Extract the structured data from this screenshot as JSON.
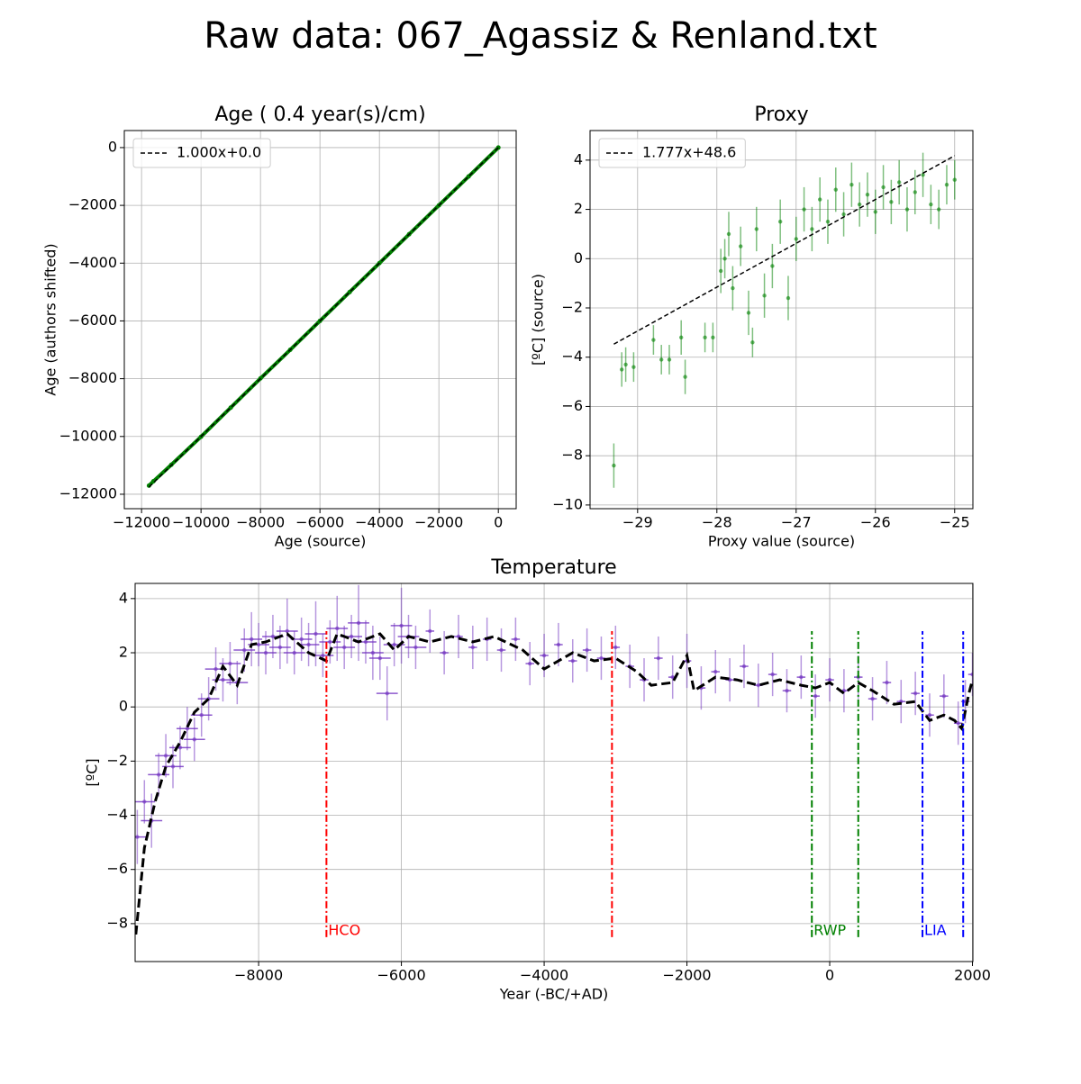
{
  "suptitle": "Raw data: 067_Agassiz & Renland.txt",
  "chart_data": [
    {
      "type": "line",
      "title": "Age ( 0.4 year(s)/cm)",
      "x_label": "Age (source)",
      "y_label": "Age (authors shifted)",
      "xlim": [
        -12580,
        600
      ],
      "ylim": [
        -12500,
        590
      ],
      "xticks": [
        {
          "value": -12000,
          "label": "−12000"
        },
        {
          "value": -10000,
          "label": "−10000"
        },
        {
          "value": -8000,
          "label": "−8000"
        },
        {
          "value": -6000,
          "label": "−6000"
        },
        {
          "value": -4000,
          "label": "−4000"
        },
        {
          "value": -2000,
          "label": "−2000"
        },
        0
      ],
      "yticks": [
        {
          "value": -12000,
          "label": "−12000"
        },
        {
          "value": -10000,
          "label": "−10000"
        },
        {
          "value": -8000,
          "label": "−8000"
        },
        {
          "value": -6000,
          "label": "−6000"
        },
        {
          "value": -4000,
          "label": "−4000"
        },
        {
          "value": -2000,
          "label": "−2000"
        },
        0
      ],
      "grid": true,
      "legend": "upper left",
      "series": [
        {
          "color": "green",
          "marker": true,
          "linewidth": 4,
          "x": [
            -11750,
            -11600,
            -11000,
            -10000,
            -9000,
            -8000,
            -7000,
            -6000,
            -5000,
            -4000,
            -3000,
            -2000,
            -1000,
            0
          ],
          "values": [
            -11700,
            -11550,
            -10980,
            -10010,
            -9000,
            -7990,
            -7000,
            -6000,
            -5000,
            -4000,
            -3000,
            -2000,
            -1000,
            0
          ]
        },
        {
          "name": "1.000x+0.0",
          "color": "black",
          "linestyle": "dashed",
          "linewidth": 1.5,
          "x": [
            -11750,
            0
          ],
          "values": [
            -11750,
            0
          ]
        }
      ]
    },
    {
      "type": "scatter",
      "title": "Proxy",
      "x_label": "Proxy value (source)",
      "y_label": "[ºC] (source)",
      "xlim": [
        -29.6,
        -24.77
      ],
      "ylim": [
        -10.15,
        5.2
      ],
      "xticks": [
        {
          "value": -29,
          "label": "−29"
        },
        {
          "value": -28,
          "label": "−28"
        },
        {
          "value": -27,
          "label": "−27"
        },
        {
          "value": -26,
          "label": "−26"
        },
        {
          "value": -25,
          "label": "−25"
        }
      ],
      "yticks": [
        {
          "value": -10,
          "label": "−10"
        },
        {
          "value": -8,
          "label": "−8"
        },
        {
          "value": -6,
          "label": "−6"
        },
        {
          "value": -4,
          "label": "−4"
        },
        {
          "value": -2,
          "label": "−2"
        },
        0,
        2,
        4
      ],
      "grid": true,
      "legend": "upper left",
      "series": [
        {
          "color": "green",
          "x": [
            -29.3,
            -29.2,
            -29.15,
            -29.05,
            -28.8,
            -28.7,
            -28.6,
            -28.45,
            -28.4,
            -28.15,
            -28.05,
            -27.95,
            -27.9,
            -27.85,
            -27.8,
            -27.7,
            -27.6,
            -27.55,
            -27.5,
            -27.4,
            -27.3,
            -27.2,
            -27.1,
            -27.0,
            -26.9,
            -26.8,
            -26.7,
            -26.6,
            -26.5,
            -26.4,
            -26.3,
            -26.2,
            -26.1,
            -26.0,
            -25.9,
            -25.8,
            -25.7,
            -25.6,
            -25.5,
            -25.4,
            -25.3,
            -25.2,
            -25.1,
            -25.0
          ],
          "values": [
            -8.4,
            -4.5,
            -4.3,
            -4.4,
            -3.3,
            -4.1,
            -4.1,
            -3.2,
            -4.8,
            -3.2,
            -3.2,
            -0.5,
            0.0,
            1.0,
            -1.2,
            0.5,
            -2.2,
            -3.4,
            1.2,
            -1.5,
            -0.3,
            1.5,
            -1.6,
            0.8,
            2.0,
            1.2,
            2.4,
            1.5,
            2.8,
            1.8,
            3.0,
            2.2,
            2.6,
            1.9,
            2.9,
            2.3,
            3.1,
            2.0,
            2.7,
            3.4,
            2.2,
            2.0,
            3.0,
            3.2
          ],
          "yerr": [
            0.9,
            0.7,
            0.7,
            0.6,
            0.6,
            0.6,
            0.6,
            0.7,
            0.7,
            0.6,
            0.6,
            0.9,
            0.8,
            0.9,
            0.9,
            0.8,
            0.9,
            0.6,
            0.9,
            0.9,
            0.9,
            0.9,
            0.9,
            0.9,
            0.9,
            0.9,
            0.9,
            0.9,
            0.9,
            0.9,
            0.9,
            0.9,
            0.9,
            0.9,
            0.9,
            0.9,
            0.9,
            0.9,
            0.9,
            0.9,
            0.8,
            0.8,
            0.8,
            0.8
          ]
        },
        {
          "name": "1.777x+48.6",
          "color": "black",
          "linestyle": "dashed",
          "linewidth": 1.5,
          "x": [
            -29.3,
            -25.0
          ],
          "values": [
            -3.47,
            4.18
          ]
        }
      ]
    },
    {
      "type": "line",
      "title": "Temperature",
      "x_label": "Year (-BC/+AD)",
      "y_label": "[ºC]",
      "xlim": [
        -9730,
        2006
      ],
      "ylim": [
        -9.4,
        4.56
      ],
      "xticks": [
        {
          "value": -8000,
          "label": "−8000"
        },
        {
          "value": -6000,
          "label": "−6000"
        },
        {
          "value": -4000,
          "label": "−4000"
        },
        {
          "value": -2000,
          "label": "−2000"
        },
        0,
        2000
      ],
      "yticks": [
        {
          "value": -8,
          "label": "−8"
        },
        {
          "value": -6,
          "label": "−6"
        },
        {
          "value": -4,
          "label": "−4"
        },
        {
          "value": -2,
          "label": "−2"
        },
        0,
        2,
        4
      ],
      "grid": true,
      "series": [
        {
          "color": "#7030c0",
          "x": [
            -9700,
            -9600,
            -9500,
            -9400,
            -9300,
            -9200,
            -9100,
            -9000,
            -8900,
            -8800,
            -8700,
            -8600,
            -8500,
            -8400,
            -8300,
            -8200,
            -8100,
            -8000,
            -7900,
            -7800,
            -7700,
            -7600,
            -7500,
            -7400,
            -7300,
            -7200,
            -7100,
            -7000,
            -6900,
            -6800,
            -6700,
            -6600,
            -6500,
            -6400,
            -6300,
            -6200,
            -6100,
            -6000,
            -5900,
            -5800,
            -5600,
            -5400,
            -5200,
            -5000,
            -4800,
            -4600,
            -4400,
            -4200,
            -4000,
            -3800,
            -3600,
            -3400,
            -3200,
            -3000,
            -2800,
            -2600,
            -2400,
            -2200,
            -2000,
            -1800,
            -1600,
            -1400,
            -1200,
            -1000,
            -800,
            -600,
            -400,
            -200,
            0,
            200,
            400,
            600,
            800,
            1000,
            1200,
            1400,
            1600,
            1800,
            1900,
            2000
          ],
          "values": [
            -4.8,
            -3.5,
            -4.2,
            -2.5,
            -1.8,
            -2.2,
            -1.5,
            -0.8,
            -1.2,
            -0.3,
            0.3,
            1.4,
            1.0,
            1.6,
            0.9,
            2.1,
            2.5,
            2.3,
            2.0,
            2.6,
            2.2,
            2.8,
            2.0,
            2.5,
            2.3,
            2.7,
            1.9,
            2.4,
            2.9,
            2.2,
            2.6,
            3.1,
            2.4,
            2.0,
            1.8,
            0.5,
            2.3,
            3.0,
            2.6,
            2.2,
            2.8,
            2.0,
            2.6,
            2.2,
            2.5,
            2.1,
            2.5,
            1.6,
            1.9,
            2.3,
            1.7,
            2.1,
            1.8,
            2.2,
            1.5,
            1.0,
            1.8,
            1.1,
            1.7,
            0.7,
            1.3,
            1.0,
            1.5,
            0.8,
            1.2,
            0.6,
            1.1,
            0.4,
            1.0,
            0.6,
            1.1,
            0.3,
            0.9,
            0.2,
            0.5,
            -0.3,
            0.4,
            -0.6,
            0.2,
            1.2
          ],
          "yerr": [
            1.0,
            0.8,
            1.0,
            0.8,
            0.8,
            0.8,
            0.8,
            0.8,
            0.8,
            0.8,
            0.8,
            0.8,
            0.8,
            0.8,
            0.8,
            0.8,
            1.0,
            0.8,
            0.8,
            0.8,
            0.8,
            1.2,
            0.8,
            0.8,
            0.8,
            1.2,
            0.8,
            0.8,
            1.2,
            0.8,
            0.8,
            1.4,
            0.8,
            1.0,
            0.8,
            1.0,
            0.8,
            1.4,
            0.8,
            0.8,
            0.8,
            0.8,
            0.8,
            0.8,
            0.8,
            0.8,
            0.8,
            0.8,
            0.8,
            0.8,
            0.8,
            0.8,
            0.8,
            0.8,
            0.8,
            0.8,
            0.8,
            0.8,
            1.0,
            0.8,
            0.8,
            0.8,
            0.8,
            0.8,
            0.8,
            0.8,
            0.8,
            0.8,
            0.8,
            0.8,
            0.8,
            0.8,
            0.8,
            0.8,
            0.8,
            0.8,
            0.8,
            0.8,
            0.8,
            0.8
          ],
          "xerr": [
            150,
            150,
            150,
            150,
            150,
            150,
            150,
            150,
            150,
            150,
            150,
            150,
            150,
            150,
            150,
            150,
            150,
            150,
            150,
            150,
            150,
            150,
            150,
            150,
            150,
            150,
            150,
            150,
            150,
            150,
            150,
            150,
            150,
            150,
            150,
            150,
            150,
            150,
            150,
            150,
            60,
            60,
            60,
            60,
            60,
            60,
            60,
            60,
            60,
            60,
            60,
            60,
            60,
            60,
            60,
            60,
            60,
            60,
            60,
            60,
            60,
            60,
            60,
            60,
            60,
            60,
            60,
            60,
            60,
            60,
            60,
            60,
            60,
            60,
            60,
            60,
            60,
            60,
            60,
            60
          ]
        },
        {
          "color": "black",
          "linestyle": "dashed",
          "linewidth": 3,
          "x": [
            -9720,
            -9600,
            -9450,
            -9300,
            -9100,
            -8900,
            -8700,
            -8500,
            -8300,
            -8100,
            -7900,
            -7600,
            -7300,
            -7050,
            -6900,
            -6600,
            -6300,
            -6100,
            -5900,
            -5600,
            -5300,
            -5000,
            -4700,
            -4300,
            -4000,
            -3600,
            -3300,
            -3000,
            -2700,
            -2500,
            -2200,
            -2000,
            -1900,
            -1600,
            -1300,
            -1000,
            -700,
            -400,
            -200,
            0,
            200,
            400,
            600,
            900,
            1200,
            1400,
            1600,
            1750,
            1850,
            1950,
            2000
          ],
          "values": [
            -8.4,
            -5.2,
            -3.5,
            -2.2,
            -1.3,
            -0.2,
            0.3,
            1.5,
            0.8,
            2.3,
            2.4,
            2.7,
            2.0,
            1.7,
            2.7,
            2.4,
            2.7,
            2.1,
            2.6,
            2.4,
            2.6,
            2.4,
            2.6,
            2.1,
            1.4,
            2.0,
            1.7,
            1.8,
            1.3,
            0.8,
            0.9,
            1.9,
            0.6,
            1.1,
            1.0,
            0.8,
            1.0,
            0.8,
            0.7,
            0.9,
            0.5,
            0.9,
            0.6,
            0.1,
            0.2,
            -0.5,
            -0.3,
            -0.5,
            -0.8,
            0.5,
            1.0
          ]
        }
      ],
      "period_span": [
        -8.5,
        2.8
      ],
      "periods": [
        {
          "label": "HCO",
          "color": "red",
          "x": [
            -7050,
            -3050
          ]
        },
        {
          "label": "RWP",
          "color": "green",
          "x": [
            -250,
            400
          ]
        },
        {
          "label": "LIA",
          "color": "blue",
          "x": [
            1300,
            1870
          ]
        }
      ]
    }
  ]
}
